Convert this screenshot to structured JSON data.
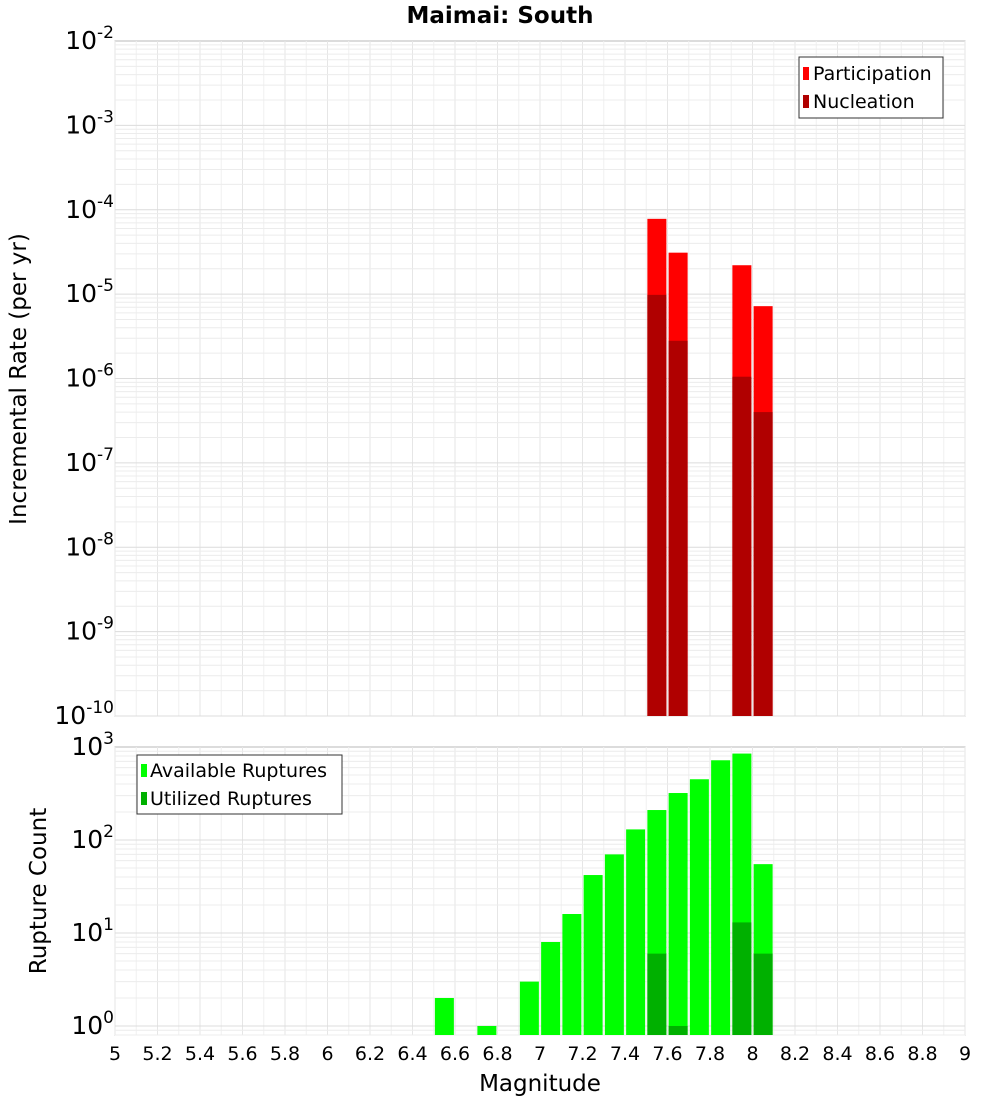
{
  "chart_data": [
    {
      "type": "bar",
      "title": "Maimai: South",
      "xlabel": "Magnitude",
      "ylabel": "Incremental Rate (per yr)",
      "yscale": "log",
      "ylim": [
        1e-10,
        0.01
      ],
      "xlim": [
        5,
        9
      ],
      "y_ticks": [
        {
          "base": "10",
          "exp": "-10"
        },
        {
          "base": "10",
          "exp": "-9"
        },
        {
          "base": "10",
          "exp": "-8"
        },
        {
          "base": "10",
          "exp": "-7"
        },
        {
          "base": "10",
          "exp": "-6"
        },
        {
          "base": "10",
          "exp": "-5"
        },
        {
          "base": "10",
          "exp": "-4"
        },
        {
          "base": "10",
          "exp": "-3"
        },
        {
          "base": "10",
          "exp": "-2"
        }
      ],
      "legend_position": "top-right",
      "series": [
        {
          "name": "Participation",
          "color": "#ff0000",
          "x": [
            7.55,
            7.65,
            7.95,
            8.05
          ],
          "values": [
            7.8e-05,
            3.1e-05,
            2.2e-05,
            7.2e-06
          ]
        },
        {
          "name": "Nucleation",
          "color": "#b00000",
          "x": [
            7.55,
            7.65,
            7.95,
            8.05
          ],
          "values": [
            9.8e-06,
            2.8e-06,
            1.05e-06,
            4e-07
          ]
        }
      ]
    },
    {
      "type": "bar",
      "xlabel": "Magnitude",
      "ylabel": "Rupture Count",
      "yscale": "log",
      "ylim": [
        0.8,
        1000
      ],
      "xlim": [
        5,
        9
      ],
      "y_ticks": [
        {
          "value": 1,
          "base": "10",
          "exp": "0"
        },
        {
          "value": 10,
          "base": "10",
          "exp": "1"
        },
        {
          "value": 100,
          "base": "10",
          "exp": "2"
        },
        {
          "value": 1000,
          "base": "10",
          "exp": "3"
        }
      ],
      "x_ticks": [
        "5",
        "5.2",
        "5.4",
        "5.6",
        "5.8",
        "6",
        "6.2",
        "6.4",
        "6.6",
        "6.8",
        "7",
        "7.2",
        "7.4",
        "7.6",
        "7.8",
        "8",
        "8.2",
        "8.4",
        "8.6",
        "8.8",
        "9"
      ],
      "legend_position": "top-left",
      "series": [
        {
          "name": "Available Ruptures",
          "color": "#00ff00",
          "x": [
            6.55,
            6.75,
            6.95,
            7.05,
            7.15,
            7.25,
            7.35,
            7.45,
            7.55,
            7.65,
            7.75,
            7.85,
            7.95,
            8.05
          ],
          "values": [
            2,
            1,
            3,
            8,
            16,
            42,
            70,
            130,
            210,
            320,
            450,
            720,
            850,
            55
          ]
        },
        {
          "name": "Utilized Ruptures",
          "color": "#00b000",
          "x": [
            7.55,
            7.65,
            7.95,
            8.05
          ],
          "values": [
            6,
            1,
            13,
            6
          ]
        }
      ]
    }
  ]
}
